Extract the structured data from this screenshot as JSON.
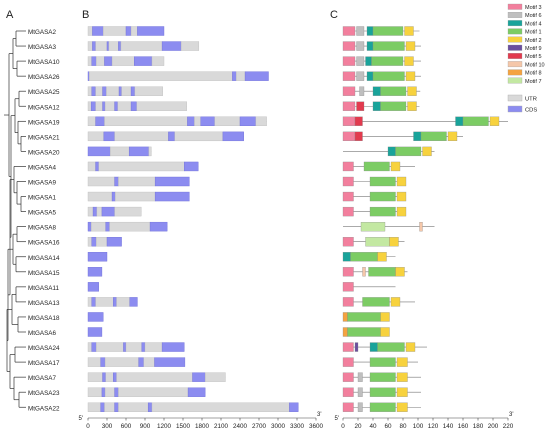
{
  "panel_labels": [
    "A",
    "B",
    "C"
  ],
  "genes": [
    "MtGASA2",
    "MtGASA3",
    "MtGASA10",
    "MtGASA26",
    "MtGASA25",
    "MtGASA12",
    "MtGASA19",
    "MtGASA21",
    "MtGASA20",
    "MtGASA4",
    "MtGASA9",
    "MtGASA1",
    "MtGASA5",
    "MtGASA8",
    "MtGASA16",
    "MtGASA14",
    "MtGASA15",
    "MtGASA11",
    "MtGASA13",
    "MtGASA18",
    "MtGASA6",
    "MtGASA24",
    "MtGASA17",
    "MtGASA7",
    "MtGASA23",
    "MtGASA22"
  ],
  "gene_structure": {
    "axis_ticks": [
      0,
      300,
      600,
      900,
      1200,
      1500,
      1800,
      2100,
      2400,
      2700,
      3000,
      3300,
      3600
    ],
    "five_prime": "5'",
    "three_prime": "3'",
    "legend": [
      {
        "label": "UTR",
        "color": "#d9d9d9"
      },
      {
        "label": "CDS",
        "color": "#8c8cf0"
      }
    ],
    "lengths": [
      1200,
      1750,
      1200,
      2850,
      1180,
      1560,
      2820,
      2460,
      1000,
      1740,
      1600,
      1600,
      840,
      1250,
      530,
      300,
      220,
      170,
      780,
      240,
      220,
      1520,
      1530,
      2170,
      1850,
      3320
    ],
    "features": [
      [
        [
          "U",
          0,
          70
        ],
        [
          "C",
          70,
          240
        ],
        [
          "U",
          240,
          600
        ],
        [
          "C",
          600,
          680
        ],
        [
          "U",
          680,
          780
        ],
        [
          "C",
          780,
          1200
        ]
      ],
      [
        [
          "U",
          0,
          70
        ],
        [
          "C",
          70,
          120
        ],
        [
          "U",
          120,
          300
        ],
        [
          "C",
          300,
          330
        ],
        [
          "U",
          330,
          480
        ],
        [
          "C",
          480,
          520
        ],
        [
          "U",
          520,
          1170
        ],
        [
          "C",
          1170,
          1470
        ],
        [
          "U",
          1470,
          1750
        ]
      ],
      [
        [
          "U",
          0,
          60
        ],
        [
          "C",
          60,
          130
        ],
        [
          "U",
          130,
          260
        ],
        [
          "C",
          260,
          380
        ],
        [
          "U",
          380,
          730
        ],
        [
          "C",
          730,
          1010
        ],
        [
          "U",
          1010,
          1200
        ]
      ],
      [
        [
          "C",
          0,
          20
        ],
        [
          "U",
          20,
          2280
        ],
        [
          "C",
          2280,
          2340
        ],
        [
          "U",
          2340,
          2480
        ],
        [
          "C",
          2480,
          2850
        ]
      ],
      [
        [
          "U",
          0,
          60
        ],
        [
          "C",
          60,
          120
        ],
        [
          "U",
          120,
          230
        ],
        [
          "C",
          230,
          290
        ],
        [
          "U",
          290,
          490
        ],
        [
          "C",
          490,
          530
        ],
        [
          "U",
          530,
          680
        ],
        [
          "C",
          680,
          740
        ],
        [
          "U",
          740,
          1180
        ]
      ],
      [
        [
          "U",
          0,
          50
        ],
        [
          "C",
          50,
          120
        ],
        [
          "U",
          120,
          230
        ],
        [
          "C",
          230,
          270
        ],
        [
          "U",
          270,
          420
        ],
        [
          "C",
          420,
          470
        ],
        [
          "U",
          470,
          680
        ],
        [
          "C",
          680,
          770
        ],
        [
          "U",
          770,
          1560
        ]
      ],
      [
        [
          "U",
          0,
          120
        ],
        [
          "C",
          120,
          260
        ],
        [
          "U",
          260,
          1570
        ],
        [
          "C",
          1570,
          1680
        ],
        [
          "U",
          1680,
          1780
        ],
        [
          "C",
          1780,
          2000
        ],
        [
          "U",
          2000,
          2400
        ],
        [
          "C",
          2400,
          2650
        ],
        [
          "U",
          2650,
          2820
        ]
      ],
      [
        [
          "U",
          0,
          250
        ],
        [
          "C",
          250,
          420
        ],
        [
          "U",
          420,
          1270
        ],
        [
          "C",
          1270,
          1370
        ],
        [
          "U",
          1370,
          2130
        ],
        [
          "C",
          2130,
          2460
        ]
      ],
      [
        [
          "C",
          0,
          350
        ],
        [
          "U",
          350,
          650
        ],
        [
          "C",
          650,
          960
        ],
        [
          "U",
          960,
          1000
        ]
      ],
      [
        [
          "U",
          0,
          120
        ],
        [
          "C",
          120,
          170
        ],
        [
          "U",
          170,
          1520
        ],
        [
          "C",
          1520,
          1740
        ]
      ],
      [
        [
          "U",
          0,
          420
        ],
        [
          "C",
          420,
          480
        ],
        [
          "U",
          480,
          1060
        ],
        [
          "C",
          1060,
          1600
        ]
      ],
      [
        [
          "U",
          0,
          380
        ],
        [
          "C",
          380,
          430
        ],
        [
          "U",
          430,
          1060
        ],
        [
          "C",
          1060,
          1600
        ]
      ],
      [
        [
          "U",
          0,
          80
        ],
        [
          "C",
          80,
          140
        ],
        [
          "U",
          140,
          220
        ],
        [
          "C",
          220,
          420
        ],
        [
          "U",
          420,
          840
        ]
      ],
      [
        [
          "C",
          0,
          50
        ],
        [
          "U",
          50,
          280
        ],
        [
          "C",
          280,
          340
        ],
        [
          "U",
          340,
          980
        ],
        [
          "C",
          980,
          1250
        ]
      ],
      [
        [
          "U",
          0,
          60
        ],
        [
          "C",
          60,
          130
        ],
        [
          "U",
          130,
          300
        ],
        [
          "C",
          300,
          530
        ]
      ],
      [
        [
          "C",
          0,
          300
        ]
      ],
      [
        [
          "C",
          0,
          220
        ]
      ],
      [
        [
          "C",
          0,
          170
        ]
      ],
      [
        [
          "U",
          0,
          60
        ],
        [
          "C",
          60,
          120
        ],
        [
          "U",
          120,
          400
        ],
        [
          "C",
          400,
          450
        ],
        [
          "U",
          450,
          660
        ],
        [
          "C",
          660,
          780
        ]
      ],
      [
        [
          "C",
          0,
          240
        ]
      ],
      [
        [
          "C",
          0,
          220
        ]
      ],
      [
        [
          "U",
          0,
          60
        ],
        [
          "C",
          60,
          130
        ],
        [
          "U",
          130,
          560
        ],
        [
          "C",
          560,
          600
        ],
        [
          "U",
          600,
          850
        ],
        [
          "C",
          850,
          900
        ],
        [
          "U",
          900,
          1170
        ],
        [
          "C",
          1170,
          1520
        ]
      ],
      [
        [
          "U",
          0,
          200
        ],
        [
          "C",
          200,
          270
        ],
        [
          "U",
          270,
          800
        ],
        [
          "C",
          800,
          880
        ],
        [
          "U",
          880,
          1050
        ],
        [
          "C",
          1050,
          1530
        ]
      ],
      [
        [
          "U",
          0,
          230
        ],
        [
          "C",
          230,
          280
        ],
        [
          "U",
          280,
          400
        ],
        [
          "C",
          400,
          450
        ],
        [
          "U",
          450,
          1650
        ],
        [
          "C",
          1650,
          1850
        ],
        [
          "U",
          1850,
          2170
        ]
      ],
      [
        [
          "U",
          0,
          220
        ],
        [
          "C",
          220,
          270
        ],
        [
          "U",
          270,
          420
        ],
        [
          "C",
          420,
          480
        ],
        [
          "U",
          480,
          1580
        ],
        [
          "C",
          1580,
          1850
        ]
      ],
      [
        [
          "U",
          0,
          200
        ],
        [
          "C",
          200,
          260
        ],
        [
          "U",
          260,
          420
        ],
        [
          "C",
          420,
          480
        ],
        [
          "U",
          480,
          950
        ],
        [
          "C",
          950,
          1010
        ],
        [
          "U",
          1010,
          3180
        ],
        [
          "C",
          3180,
          3320
        ]
      ]
    ]
  },
  "motifs": {
    "axis_ticks": [
      0,
      20,
      40,
      60,
      80,
      100,
      120,
      140,
      160,
      180,
      200,
      220
    ],
    "legend": [
      {
        "label": "Motif 3",
        "color": "#f27f9d"
      },
      {
        "label": "Motif 6",
        "color": "#bfbfbf"
      },
      {
        "label": "Motif 4",
        "color": "#19a39a"
      },
      {
        "label": "Motif 1",
        "color": "#7ccc64"
      },
      {
        "label": "Motif 2",
        "color": "#f7d23e"
      },
      {
        "label": "Motif 9",
        "color": "#6a4f9e"
      },
      {
        "label": "Motif 5",
        "color": "#e23a4e"
      },
      {
        "label": "Motif 10",
        "color": "#f5c7a9"
      },
      {
        "label": "Motif 8",
        "color": "#f4a340"
      },
      {
        "label": "Motif 7",
        "color": "#c3e8a2"
      }
    ],
    "lengths": [
      102,
      104,
      104,
      104,
      103,
      102,
      220,
      160,
      122,
      96,
      84,
      84,
      84,
      122,
      82,
      70,
      86,
      70,
      96,
      62,
      62,
      112,
      100,
      104,
      104,
      104
    ],
    "features": [
      [
        [
          0,
          16,
          "Motif 3"
        ],
        [
          18,
          28,
          "Motif 6"
        ],
        [
          32,
          40,
          "Motif 4"
        ],
        [
          40,
          80,
          "Motif 1"
        ],
        [
          82,
          94,
          "Motif 2"
        ]
      ],
      [
        [
          0,
          16,
          "Motif 3"
        ],
        [
          18,
          28,
          "Motif 6"
        ],
        [
          32,
          40,
          "Motif 4"
        ],
        [
          40,
          82,
          "Motif 1"
        ],
        [
          84,
          96,
          "Motif 2"
        ]
      ],
      [
        [
          0,
          16,
          "Motif 3"
        ],
        [
          18,
          28,
          "Motif 6"
        ],
        [
          30,
          38,
          "Motif 4"
        ],
        [
          38,
          80,
          "Motif 1"
        ],
        [
          82,
          94,
          "Motif 2"
        ]
      ],
      [
        [
          0,
          16,
          "Motif 3"
        ],
        [
          18,
          28,
          "Motif 6"
        ],
        [
          32,
          40,
          "Motif 4"
        ],
        [
          40,
          82,
          "Motif 1"
        ],
        [
          84,
          96,
          "Motif 2"
        ]
      ],
      [
        [
          0,
          16,
          "Motif 3"
        ],
        [
          22,
          28,
          "Motif 6"
        ],
        [
          40,
          50,
          "Motif 4"
        ],
        [
          50,
          84,
          "Motif 1"
        ],
        [
          86,
          98,
          "Motif 2"
        ]
      ],
      [
        [
          0,
          16,
          "Motif 3"
        ],
        [
          18,
          28,
          "Motif 5"
        ],
        [
          40,
          50,
          "Motif 4"
        ],
        [
          50,
          84,
          "Motif 1"
        ],
        [
          86,
          98,
          "Motif 2"
        ]
      ],
      [
        [
          0,
          16,
          "Motif 3"
        ],
        [
          16,
          26,
          "Motif 5"
        ],
        [
          150,
          160,
          "Motif 4"
        ],
        [
          160,
          194,
          "Motif 1"
        ],
        [
          196,
          208,
          "Motif 2"
        ]
      ],
      [
        [
          0,
          16,
          "Motif 3"
        ],
        [
          16,
          26,
          "Motif 5"
        ],
        [
          94,
          104,
          "Motif 4"
        ],
        [
          104,
          138,
          "Motif 1"
        ],
        [
          140,
          152,
          "Motif 2"
        ]
      ],
      [
        [
          60,
          70,
          "Motif 4"
        ],
        [
          70,
          104,
          "Motif 1"
        ],
        [
          106,
          118,
          "Motif 2"
        ]
      ],
      [
        [
          0,
          14,
          "Motif 3"
        ],
        [
          28,
          62,
          "Motif 1"
        ],
        [
          64,
          76,
          "Motif 2"
        ]
      ],
      [
        [
          0,
          14,
          "Motif 3"
        ],
        [
          36,
          70,
          "Motif 1"
        ],
        [
          72,
          84,
          "Motif 2"
        ]
      ],
      [
        [
          0,
          14,
          "Motif 3"
        ],
        [
          36,
          70,
          "Motif 1"
        ],
        [
          72,
          84,
          "Motif 2"
        ]
      ],
      [
        [
          0,
          14,
          "Motif 3"
        ],
        [
          36,
          70,
          "Motif 1"
        ],
        [
          72,
          84,
          "Motif 2"
        ]
      ],
      [
        [
          24,
          56,
          "Motif 7"
        ],
        [
          102,
          106,
          "Motif 10"
        ]
      ],
      [
        [
          0,
          14,
          "Motif 3"
        ],
        [
          30,
          62,
          "Motif 7"
        ],
        [
          62,
          74,
          "Motif 2"
        ]
      ],
      [
        [
          0,
          10,
          "Motif 4"
        ],
        [
          10,
          46,
          "Motif 1"
        ],
        [
          46,
          58,
          "Motif 2"
        ]
      ],
      [
        [
          0,
          14,
          "Motif 3"
        ],
        [
          26,
          30,
          "Motif 10"
        ],
        [
          34,
          70,
          "Motif 1"
        ],
        [
          70,
          82,
          "Motif 2"
        ]
      ],
      [
        [
          0,
          14,
          "Motif 3"
        ]
      ],
      [
        [
          0,
          14,
          "Motif 3"
        ],
        [
          26,
          62,
          "Motif 1"
        ],
        [
          64,
          76,
          "Motif 2"
        ]
      ],
      [
        [
          0,
          6,
          "Motif 8"
        ],
        [
          6,
          50,
          "Motif 1"
        ],
        [
          50,
          62,
          "Motif 2"
        ]
      ],
      [
        [
          0,
          6,
          "Motif 8"
        ],
        [
          6,
          50,
          "Motif 1"
        ],
        [
          50,
          62,
          "Motif 2"
        ]
      ],
      [
        [
          0,
          14,
          "Motif 3"
        ],
        [
          16,
          20,
          "Motif 9"
        ],
        [
          36,
          46,
          "Motif 4"
        ],
        [
          46,
          82,
          "Motif 1"
        ],
        [
          84,
          96,
          "Motif 2"
        ]
      ],
      [
        [
          0,
          14,
          "Motif 3"
        ],
        [
          36,
          70,
          "Motif 1"
        ],
        [
          72,
          86,
          "Motif 2"
        ]
      ],
      [
        [
          0,
          14,
          "Motif 3"
        ],
        [
          20,
          26,
          "Motif 6"
        ],
        [
          36,
          70,
          "Motif 1"
        ],
        [
          72,
          86,
          "Motif 2"
        ]
      ],
      [
        [
          0,
          14,
          "Motif 3"
        ],
        [
          20,
          26,
          "Motif 6"
        ],
        [
          36,
          70,
          "Motif 1"
        ],
        [
          72,
          86,
          "Motif 2"
        ]
      ],
      [
        [
          0,
          14,
          "Motif 3"
        ],
        [
          20,
          26,
          "Motif 6"
        ],
        [
          36,
          70,
          "Motif 1"
        ],
        [
          72,
          86,
          "Motif 2"
        ]
      ]
    ]
  }
}
